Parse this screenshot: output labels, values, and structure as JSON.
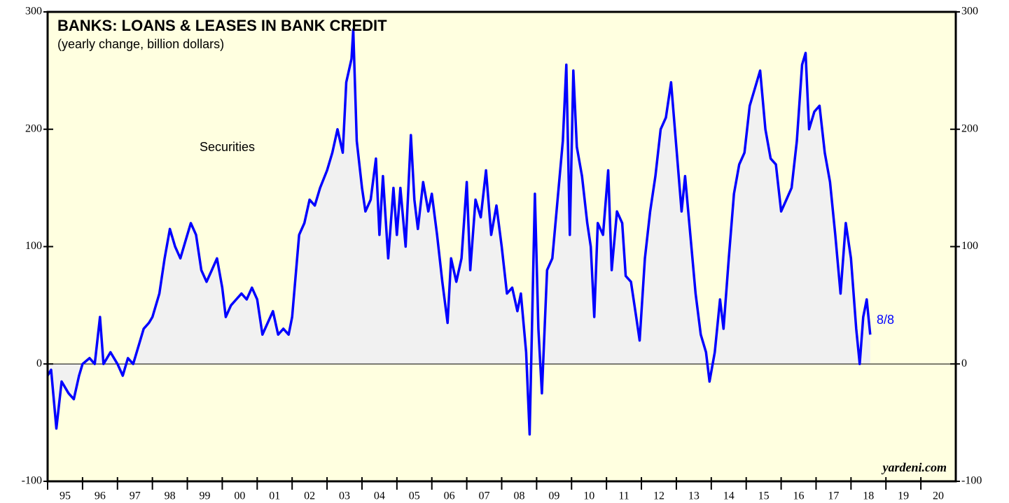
{
  "chart_data": {
    "type": "line",
    "title": "BANKS: LOANS & LEASES IN BANK CREDIT",
    "subtitle": "(yearly change, billion dollars)",
    "annotations": [
      "Securities",
      "8/8"
    ],
    "source": "yardeni.com",
    "xlim": [
      1995,
      2021
    ],
    "xticks": [
      {
        "value": 1995,
        "label": "95"
      },
      {
        "value": 1996,
        "label": "96"
      },
      {
        "value": 1997,
        "label": "97"
      },
      {
        "value": 1998,
        "label": "98"
      },
      {
        "value": 1999,
        "label": "99"
      },
      {
        "value": 2000,
        "label": "00"
      },
      {
        "value": 2001,
        "label": "01"
      },
      {
        "value": 2002,
        "label": "02"
      },
      {
        "value": 2003,
        "label": "03"
      },
      {
        "value": 2004,
        "label": "04"
      },
      {
        "value": 2005,
        "label": "05"
      },
      {
        "value": 2006,
        "label": "06"
      },
      {
        "value": 2007,
        "label": "07"
      },
      {
        "value": 2008,
        "label": "08"
      },
      {
        "value": 2009,
        "label": "09"
      },
      {
        "value": 2010,
        "label": "10"
      },
      {
        "value": 2011,
        "label": "11"
      },
      {
        "value": 2012,
        "label": "12"
      },
      {
        "value": 2013,
        "label": "13"
      },
      {
        "value": 2014,
        "label": "14"
      },
      {
        "value": 2015,
        "label": "15"
      },
      {
        "value": 2016,
        "label": "16"
      },
      {
        "value": 2017,
        "label": "17"
      },
      {
        "value": 2018,
        "label": "18"
      },
      {
        "value": 2019,
        "label": "19"
      },
      {
        "value": 2020,
        "label": "20"
      }
    ],
    "ylim": [
      -100,
      300
    ],
    "yticks": [
      -100,
      0,
      100,
      200,
      300
    ],
    "x": [
      1995.0,
      1995.1,
      1995.25,
      1995.4,
      1995.6,
      1995.75,
      1995.9,
      1996.0,
      1996.2,
      1996.35,
      1996.5,
      1996.6,
      1996.8,
      1997.0,
      1997.15,
      1997.3,
      1997.45,
      1997.6,
      1997.75,
      1997.9,
      1998.0,
      1998.2,
      1998.35,
      1998.5,
      1998.65,
      1998.8,
      1998.95,
      1999.1,
      1999.25,
      1999.4,
      1999.55,
      1999.7,
      1999.85,
      2000.0,
      2000.1,
      2000.25,
      2000.4,
      2000.55,
      2000.7,
      2000.85,
      2001.0,
      2001.15,
      2001.3,
      2001.45,
      2001.6,
      2001.75,
      2001.9,
      2002.0,
      2002.2,
      2002.35,
      2002.5,
      2002.65,
      2002.8,
      2003.0,
      2003.15,
      2003.3,
      2003.45,
      2003.55,
      2003.7,
      2003.75,
      2003.85,
      2004.0,
      2004.1,
      2004.25,
      2004.4,
      2004.5,
      2004.6,
      2004.75,
      2004.9,
      2005.0,
      2005.1,
      2005.25,
      2005.4,
      2005.5,
      2005.6,
      2005.75,
      2005.9,
      2006.0,
      2006.15,
      2006.3,
      2006.45,
      2006.55,
      2006.7,
      2006.85,
      2007.0,
      2007.1,
      2007.25,
      2007.4,
      2007.55,
      2007.7,
      2007.85,
      2008.0,
      2008.15,
      2008.3,
      2008.45,
      2008.55,
      2008.7,
      2008.8,
      2008.95,
      2009.05,
      2009.15,
      2009.3,
      2009.45,
      2009.6,
      2009.75,
      2009.85,
      2009.95,
      2010.05,
      2010.15,
      2010.3,
      2010.45,
      2010.55,
      2010.65,
      2010.75,
      2010.9,
      2011.05,
      2011.15,
      2011.3,
      2011.45,
      2011.55,
      2011.7,
      2011.85,
      2011.95,
      2012.1,
      2012.25,
      2012.4,
      2012.55,
      2012.7,
      2012.85,
      2013.0,
      2013.15,
      2013.25,
      2013.4,
      2013.55,
      2013.7,
      2013.85,
      2013.95,
      2014.1,
      2014.25,
      2014.35,
      2014.5,
      2014.65,
      2014.8,
      2014.95,
      2015.1,
      2015.25,
      2015.4,
      2015.55,
      2015.7,
      2015.85,
      2016.0,
      2016.15,
      2016.3,
      2016.45,
      2016.6,
      2016.7,
      2016.8,
      2016.95,
      2017.1,
      2017.25,
      2017.4,
      2017.55,
      2017.7,
      2017.85,
      2018.0,
      2018.15,
      2018.25,
      2018.35,
      2018.45,
      2018.55
    ],
    "series": [
      {
        "name": "Securities",
        "color": "#0000ff",
        "values": [
          -10,
          -5,
          -55,
          -15,
          -25,
          -30,
          -10,
          0,
          5,
          0,
          40,
          0,
          10,
          0,
          -10,
          5,
          0,
          15,
          30,
          35,
          40,
          60,
          90,
          115,
          100,
          90,
          105,
          120,
          110,
          80,
          70,
          80,
          90,
          65,
          40,
          50,
          55,
          60,
          55,
          65,
          55,
          25,
          35,
          45,
          25,
          30,
          25,
          40,
          110,
          120,
          140,
          135,
          150,
          165,
          180,
          200,
          180,
          240,
          260,
          285,
          190,
          150,
          130,
          140,
          175,
          110,
          160,
          90,
          150,
          110,
          150,
          100,
          195,
          140,
          115,
          155,
          130,
          145,
          110,
          70,
          35,
          90,
          70,
          90,
          155,
          80,
          140,
          125,
          165,
          110,
          135,
          100,
          60,
          65,
          45,
          60,
          10,
          -60,
          145,
          30,
          -25,
          80,
          90,
          140,
          190,
          255,
          110,
          250,
          185,
          160,
          120,
          100,
          40,
          120,
          110,
          165,
          80,
          130,
          120,
          75,
          70,
          40,
          20,
          90,
          130,
          160,
          200,
          210,
          240,
          185,
          130,
          160,
          110,
          60,
          25,
          10,
          -15,
          10,
          55,
          30,
          90,
          145,
          170,
          180,
          220,
          235,
          250,
          200,
          175,
          170,
          130,
          140,
          150,
          190,
          255,
          265,
          200,
          215,
          220,
          180,
          155,
          110,
          60,
          120,
          90,
          30,
          0,
          40,
          55,
          25
        ]
      }
    ]
  }
}
